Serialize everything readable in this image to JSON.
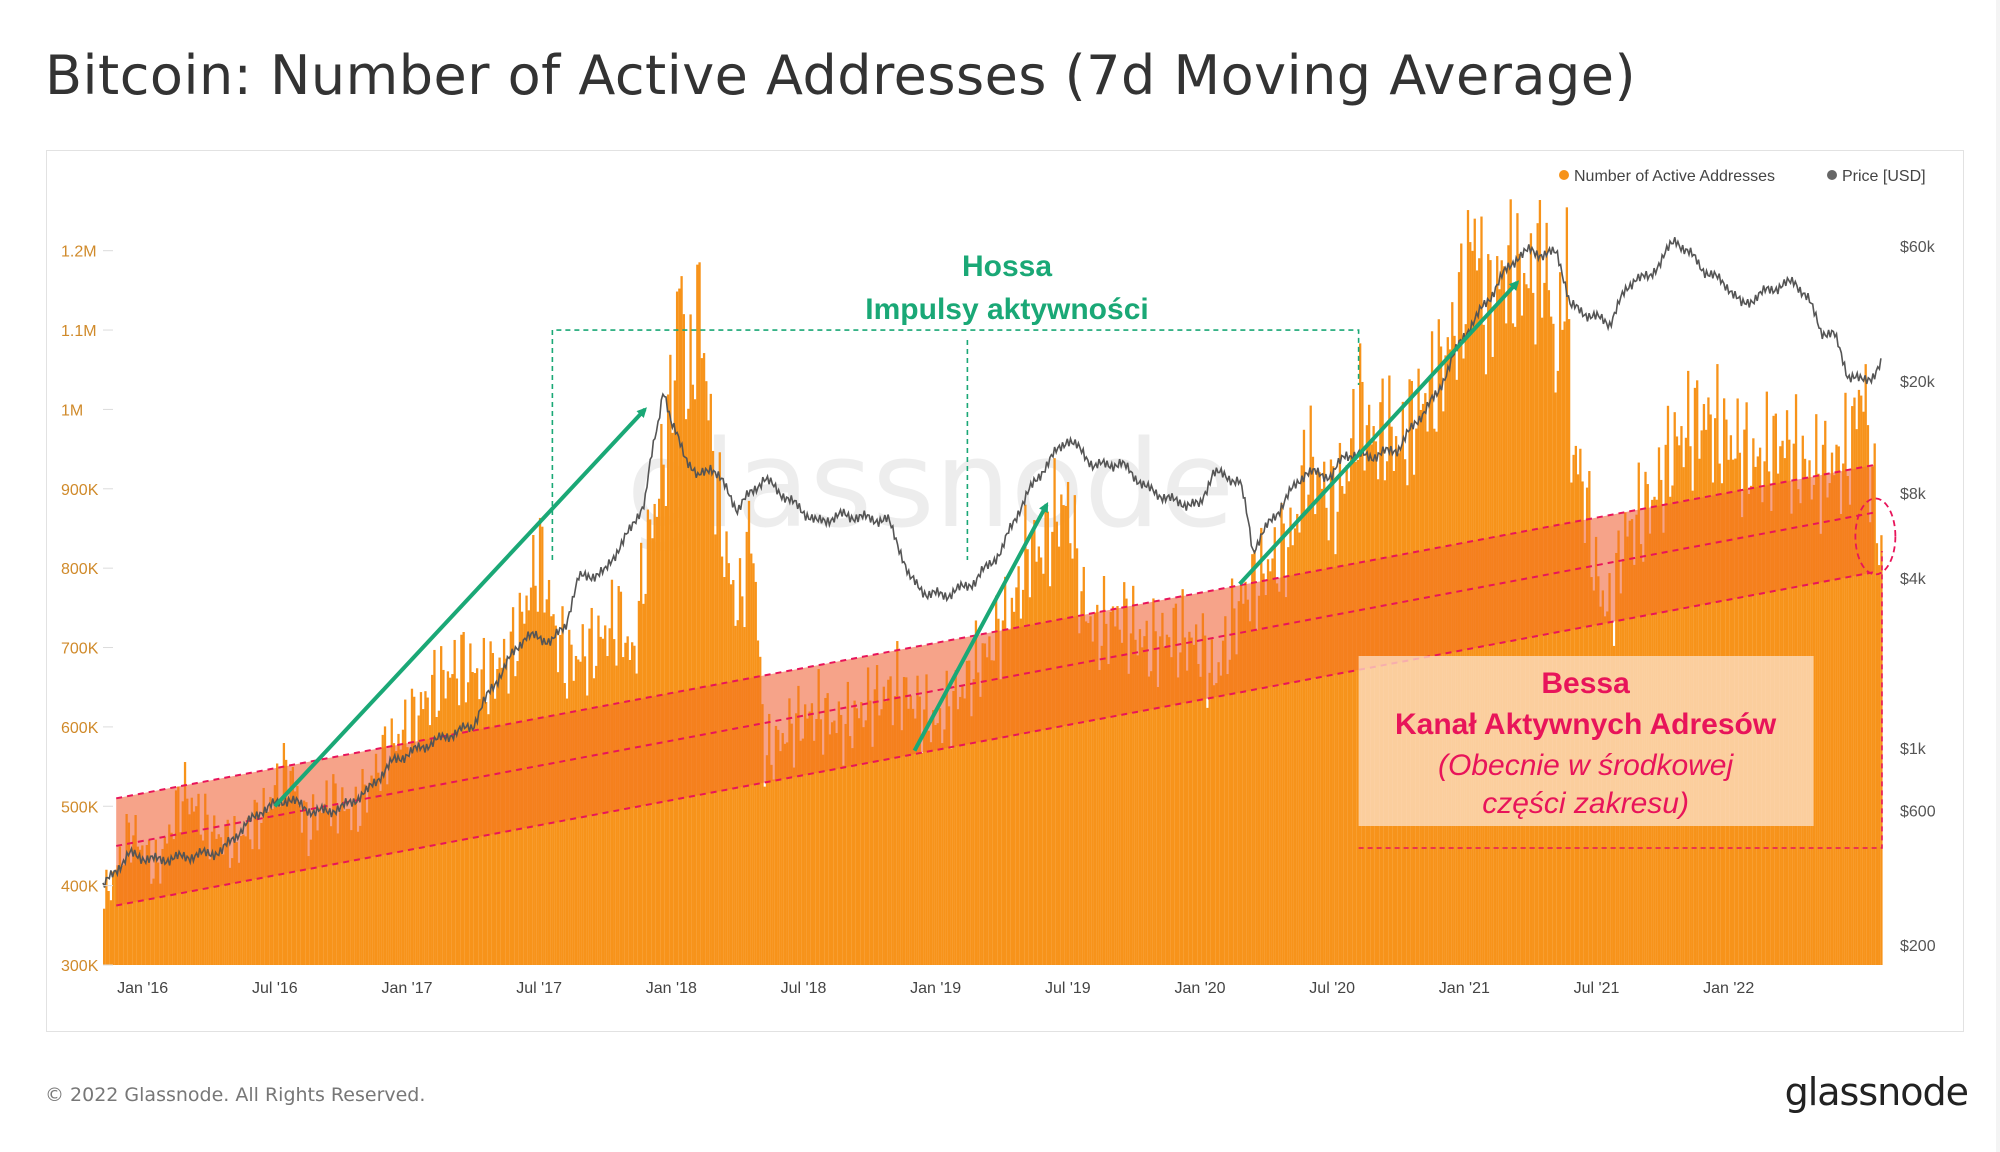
{
  "page": {
    "title": "Bitcoin: Number of Active Addresses (7d Moving Average)",
    "footer_copyright": "© 2022 Glassnode. All Rights Reserved.",
    "footer_logo": "glassnode",
    "watermark": "glassnode"
  },
  "colors": {
    "addresses": "#f7931a",
    "price": "#555555",
    "bull": "#1aa876",
    "bear": "#e8145a",
    "channel_light": "#f9c6d6",
    "left_axis": "#d08a2a",
    "right_axis": "#555555"
  },
  "chart_data": {
    "type": "bar",
    "title": "Bitcoin: Number of Active Addresses (7d Moving Average)",
    "x_ticks": [
      "Jan '16",
      "Jul '16",
      "Jan '17",
      "Jul '17",
      "Jan '18",
      "Jul '18",
      "Jan '19",
      "Jul '19",
      "Jan '20",
      "Jul '20",
      "Jan '21",
      "Jul '21",
      "Jan '22"
    ],
    "x_range": [
      2015.85,
      2022.58
    ],
    "left_axis": {
      "ticks": [
        "300K",
        "400K",
        "500K",
        "600K",
        "700K",
        "800K",
        "900K",
        "1M",
        "1.1M",
        "1.2M"
      ],
      "range": [
        300000,
        1250000
      ]
    },
    "right_axis": {
      "scale": "log",
      "ticks": [
        "$200",
        "$600",
        "$1k",
        "$4k",
        "$8k",
        "$20k",
        "$60k"
      ],
      "tick_values": [
        200,
        600,
        1000,
        4000,
        8000,
        20000,
        60000
      ]
    },
    "legend": [
      {
        "name": "Number of Active Addresses",
        "color": "#f7931a"
      },
      {
        "name": "Price [USD]",
        "color": "#666666"
      }
    ],
    "legend_position": "top-right",
    "series": [
      {
        "name": "Number of Active Addresses",
        "type": "bar",
        "points": [
          [
            2015.85,
            380000
          ],
          [
            2015.95,
            470000
          ],
          [
            2016.05,
            420000
          ],
          [
            2016.15,
            520000
          ],
          [
            2016.25,
            470000
          ],
          [
            2016.35,
            450000
          ],
          [
            2016.45,
            490000
          ],
          [
            2016.55,
            550000
          ],
          [
            2016.62,
            470000
          ],
          [
            2016.7,
            510000
          ],
          [
            2016.8,
            490000
          ],
          [
            2016.9,
            560000
          ],
          [
            2017.0,
            600000
          ],
          [
            2017.1,
            650000
          ],
          [
            2017.2,
            680000
          ],
          [
            2017.3,
            660000
          ],
          [
            2017.4,
            700000
          ],
          [
            2017.45,
            760000
          ],
          [
            2017.5,
            820000
          ],
          [
            2017.55,
            730000
          ],
          [
            2017.6,
            680000
          ],
          [
            2017.7,
            700000
          ],
          [
            2017.8,
            740000
          ],
          [
            2017.85,
            680000
          ],
          [
            2017.9,
            820000
          ],
          [
            2017.95,
            900000
          ],
          [
            2018.0,
            1020000
          ],
          [
            2018.03,
            1180000
          ],
          [
            2018.06,
            1000000
          ],
          [
            2018.1,
            1150000
          ],
          [
            2018.15,
            950000
          ],
          [
            2018.2,
            820000
          ],
          [
            2018.25,
            740000
          ],
          [
            2018.3,
            860000
          ],
          [
            2018.35,
            560000
          ],
          [
            2018.45,
            600000
          ],
          [
            2018.55,
            620000
          ],
          [
            2018.65,
            600000
          ],
          [
            2018.75,
            630000
          ],
          [
            2018.85,
            650000
          ],
          [
            2018.95,
            620000
          ],
          [
            2019.0,
            600000
          ],
          [
            2019.1,
            650000
          ],
          [
            2019.2,
            700000
          ],
          [
            2019.3,
            760000
          ],
          [
            2019.35,
            830000
          ],
          [
            2019.4,
            820000
          ],
          [
            2019.45,
            870000
          ],
          [
            2019.5,
            880000
          ],
          [
            2019.55,
            760000
          ],
          [
            2019.6,
            720000
          ],
          [
            2019.7,
            740000
          ],
          [
            2019.8,
            700000
          ],
          [
            2019.9,
            720000
          ],
          [
            2020.0,
            700000
          ],
          [
            2020.05,
            660000
          ],
          [
            2020.15,
            760000
          ],
          [
            2020.25,
            800000
          ],
          [
            2020.35,
            840000
          ],
          [
            2020.4,
            940000
          ],
          [
            2020.5,
            880000
          ],
          [
            2020.55,
            920000
          ],
          [
            2020.6,
            1010000
          ],
          [
            2020.65,
            960000
          ],
          [
            2020.7,
            980000
          ],
          [
            2020.75,
            950000
          ],
          [
            2020.82,
            1000000
          ],
          [
            2020.9,
            1040000
          ],
          [
            2021.0,
            1150000
          ],
          [
            2021.03,
            1240000
          ],
          [
            2021.08,
            1120000
          ],
          [
            2021.15,
            1180000
          ],
          [
            2021.25,
            1160000
          ],
          [
            2021.3,
            1200000
          ],
          [
            2021.35,
            1040000
          ],
          [
            2021.38,
            1230000
          ],
          [
            2021.4,
            960000
          ],
          [
            2021.45,
            900000
          ],
          [
            2021.5,
            780000
          ],
          [
            2021.55,
            740000
          ],
          [
            2021.6,
            840000
          ],
          [
            2021.7,
            880000
          ],
          [
            2021.8,
            960000
          ],
          [
            2021.9,
            990000
          ],
          [
            2022.0,
            960000
          ],
          [
            2022.1,
            930000
          ],
          [
            2022.2,
            960000
          ],
          [
            2022.3,
            920000
          ],
          [
            2022.4,
            930000
          ],
          [
            2022.45,
            940000
          ],
          [
            2022.5,
            1040000
          ],
          [
            2022.55,
            880000
          ],
          [
            2022.58,
            800000
          ]
        ]
      },
      {
        "name": "Price [USD]",
        "type": "line",
        "axis": "right",
        "points": [
          [
            2015.85,
            320
          ],
          [
            2015.95,
            420
          ],
          [
            2016.05,
            400
          ],
          [
            2016.15,
            410
          ],
          [
            2016.3,
            430
          ],
          [
            2016.45,
            600
          ],
          [
            2016.55,
            660
          ],
          [
            2016.65,
            590
          ],
          [
            2016.75,
            610
          ],
          [
            2016.85,
            700
          ],
          [
            2016.95,
            900
          ],
          [
            2017.05,
            1000
          ],
          [
            2017.15,
            1100
          ],
          [
            2017.25,
            1200
          ],
          [
            2017.35,
            1800
          ],
          [
            2017.45,
            2500
          ],
          [
            2017.55,
            2400
          ],
          [
            2017.6,
            2700
          ],
          [
            2017.65,
            4000
          ],
          [
            2017.75,
            4200
          ],
          [
            2017.85,
            6000
          ],
          [
            2017.9,
            7500
          ],
          [
            2017.95,
            14000
          ],
          [
            2017.97,
            19000
          ],
          [
            2018.0,
            14000
          ],
          [
            2018.05,
            11000
          ],
          [
            2018.1,
            9000
          ],
          [
            2018.15,
            10000
          ],
          [
            2018.25,
            7000
          ],
          [
            2018.35,
            9000
          ],
          [
            2018.45,
            7500
          ],
          [
            2018.55,
            6300
          ],
          [
            2018.65,
            6700
          ],
          [
            2018.75,
            6500
          ],
          [
            2018.82,
            6400
          ],
          [
            2018.9,
            4000
          ],
          [
            2018.97,
            3500
          ],
          [
            2019.05,
            3500
          ],
          [
            2019.15,
            3900
          ],
          [
            2019.25,
            5000
          ],
          [
            2019.35,
            8000
          ],
          [
            2019.45,
            11000
          ],
          [
            2019.5,
            12500
          ],
          [
            2019.6,
            10000
          ],
          [
            2019.7,
            10200
          ],
          [
            2019.8,
            8300
          ],
          [
            2019.9,
            7500
          ],
          [
            2020.0,
            7200
          ],
          [
            2020.05,
            9500
          ],
          [
            2020.15,
            8800
          ],
          [
            2020.2,
            5000
          ],
          [
            2020.3,
            7000
          ],
          [
            2020.4,
            9500
          ],
          [
            2020.5,
            9200
          ],
          [
            2020.55,
            11000
          ],
          [
            2020.65,
            10800
          ],
          [
            2020.75,
            11500
          ],
          [
            2020.8,
            13500
          ],
          [
            2020.9,
            18000
          ],
          [
            2021.0,
            29000
          ],
          [
            2021.05,
            34000
          ],
          [
            2021.1,
            40000
          ],
          [
            2021.15,
            48000
          ],
          [
            2021.2,
            55000
          ],
          [
            2021.25,
            58000
          ],
          [
            2021.3,
            56000
          ],
          [
            2021.35,
            57000
          ],
          [
            2021.4,
            37000
          ],
          [
            2021.45,
            35000
          ],
          [
            2021.55,
            32000
          ],
          [
            2021.6,
            40000
          ],
          [
            2021.65,
            47000
          ],
          [
            2021.7,
            46000
          ],
          [
            2021.75,
            55000
          ],
          [
            2021.8,
            63000
          ],
          [
            2021.85,
            57000
          ],
          [
            2021.9,
            50000
          ],
          [
            2022.0,
            43000
          ],
          [
            2022.05,
            37000
          ],
          [
            2022.15,
            42000
          ],
          [
            2022.25,
            45000
          ],
          [
            2022.3,
            39000
          ],
          [
            2022.35,
            30000
          ],
          [
            2022.4,
            29000
          ],
          [
            2022.45,
            21000
          ],
          [
            2022.5,
            20000
          ],
          [
            2022.55,
            21000
          ],
          [
            2022.58,
            23000
          ]
        ]
      }
    ],
    "channel": {
      "upper_line": [
        [
          2015.9,
          510000
        ],
        [
          2022.55,
          930000
        ]
      ],
      "middle_line": [
        [
          2015.9,
          450000
        ],
        [
          2022.55,
          870000
        ]
      ],
      "lower_line": [
        [
          2015.9,
          375000
        ],
        [
          2022.55,
          795000
        ]
      ]
    },
    "annotations": {
      "bull_title": "Hossa",
      "bull_subtitle": "Impulsy aktywności",
      "bear_title": "Bessa",
      "bear_subtitle": "Kanał Aktywnych Adresów",
      "bear_note_line1": "(Obecnie w środkowej",
      "bear_note_line2": "części zakresu)",
      "arrows": [
        {
          "from": [
            2016.5,
            500000
          ],
          "to": [
            2017.9,
            1000000
          ]
        },
        {
          "from": [
            2018.92,
            570000
          ],
          "to": [
            2019.42,
            880000
          ]
        },
        {
          "from": [
            2020.15,
            780000
          ],
          "to": [
            2021.2,
            1160000
          ]
        }
      ],
      "bull_box": {
        "x_range": [
          2017.55,
          2020.6
        ],
        "y_range": [
          880000,
          1100000
        ]
      },
      "bear_box": {
        "x_range": [
          2020.6,
          2022.58
        ],
        "y_range": [
          450000,
          690000
        ]
      }
    }
  }
}
